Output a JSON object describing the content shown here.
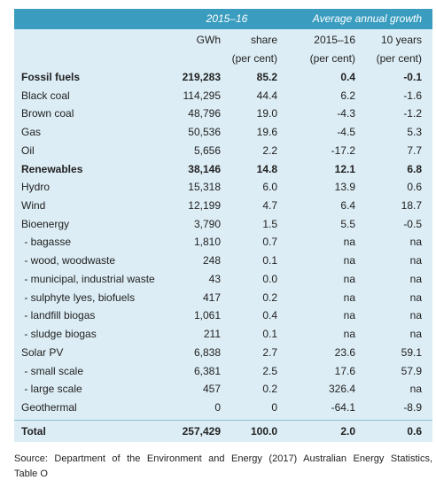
{
  "table": {
    "group_headers": [
      "2015–16",
      "Average annual growth"
    ],
    "column_headers": [
      "GWh",
      "share",
      "2015–16",
      "10 years"
    ],
    "unit_headers": [
      "(per cent)",
      "(per cent)",
      "(per cent)"
    ],
    "rows": [
      {
        "cells": [
          "Fossil fuels",
          "219,283",
          "85.2",
          "0.4",
          "-0.1"
        ],
        "bold": true
      },
      {
        "cells": [
          "Black coal",
          "114,295",
          "44.4",
          "6.2",
          "-1.6"
        ]
      },
      {
        "cells": [
          "Brown coal",
          "48,796",
          "19.0",
          "-4.3",
          "-1.2"
        ]
      },
      {
        "cells": [
          "Gas",
          "50,536",
          "19.6",
          "-4.5",
          "5.3"
        ]
      },
      {
        "cells": [
          "Oil",
          "5,656",
          "2.2",
          "-17.2",
          "7.7"
        ]
      },
      {
        "cells": [
          "Renewables",
          "38,146",
          "14.8",
          "12.1",
          "6.8"
        ],
        "bold": true
      },
      {
        "cells": [
          "Hydro",
          "15,318",
          "6.0",
          "13.9",
          "0.6"
        ]
      },
      {
        "cells": [
          "Wind",
          "12,199",
          "4.7",
          "6.4",
          "18.7"
        ]
      },
      {
        "cells": [
          "Bioenergy",
          "3,790",
          "1.5",
          "5.5",
          "-0.5"
        ]
      },
      {
        "cells": [
          " - bagasse",
          "1,810",
          "0.7",
          "na",
          "na"
        ]
      },
      {
        "cells": [
          " - wood, woodwaste",
          "248",
          "0.1",
          "na",
          "na"
        ]
      },
      {
        "cells": [
          " - municipal, industrial waste",
          "43",
          "0.0",
          "na",
          "na"
        ]
      },
      {
        "cells": [
          " - sulphyte lyes, biofuels",
          "417",
          "0.2",
          "na",
          "na"
        ]
      },
      {
        "cells": [
          " - landfill biogas",
          "1,061",
          "0.4",
          "na",
          "na"
        ]
      },
      {
        "cells": [
          " - sludge biogas",
          "211",
          "0.1",
          "na",
          "na"
        ]
      },
      {
        "cells": [
          "Solar PV",
          "6,838",
          "2.7",
          "23.6",
          "59.1"
        ]
      },
      {
        "cells": [
          " - small scale",
          "6,381",
          "2.5",
          "17.6",
          "57.9"
        ]
      },
      {
        "cells": [
          " - large scale",
          "457",
          "0.2",
          "326.4",
          "na"
        ]
      },
      {
        "cells": [
          "Geothermal",
          "0",
          "0",
          "-64.1",
          "-8.9"
        ]
      }
    ],
    "total": {
      "cells": [
        "Total",
        "257,429",
        "100.0",
        "2.0",
        "0.6"
      ],
      "bold": true
    }
  },
  "source": "Source: Department of the Environment and Energy (2017) Australian Energy Statistics,",
  "source_table": "Table O"
}
